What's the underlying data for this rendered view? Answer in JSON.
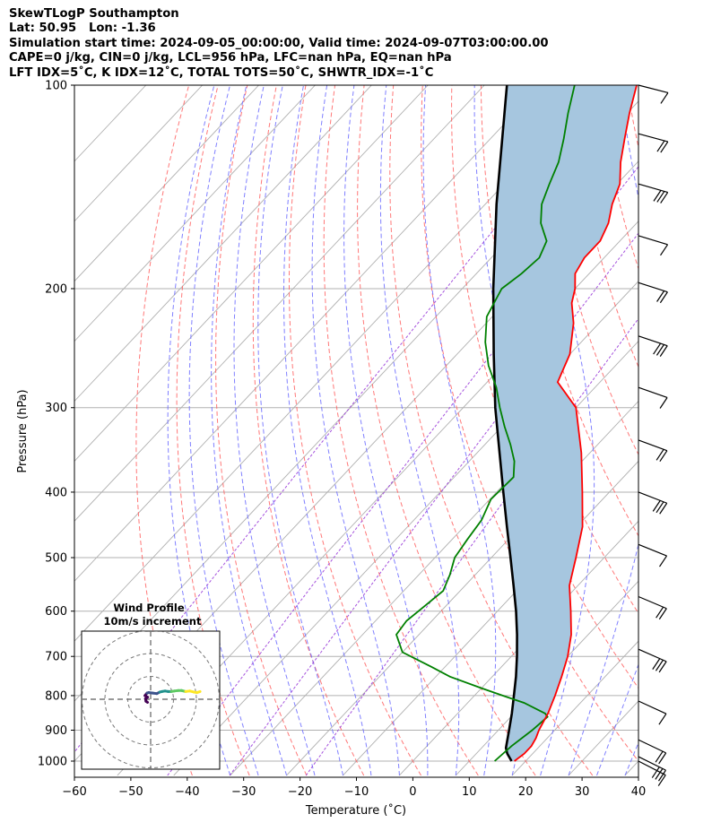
{
  "header": {
    "line1": "SkewTLogP Southampton",
    "line2": "Lat: 50.95   Lon: -1.36",
    "line3": "Simulation start time: 2024-09-05_00:00:00, Valid time: 2024-09-07T03:00:00.00",
    "line4": "CAPE=0 j/kg, CIN=0 j/kg, LCL=956 hPa, LFC=nan hPa, EQ=nan hPa",
    "line5": "LFT IDX=5˚C, K IDX=12˚C, TOTAL TOTS=50˚C, SHWTR_IDX=-1˚C"
  },
  "chart_data": {
    "type": "line",
    "skew": "skew-T log-P",
    "xlabel": "Temperature (˚C)",
    "ylabel": "Pressure (hPa)",
    "xlim": [
      -60,
      40
    ],
    "ylim_hpa": [
      1050,
      100
    ],
    "y_scale": "log",
    "x_ticks": [
      "−60",
      "−50",
      "−40",
      "−30",
      "−20",
      "−10",
      "0",
      "10",
      "20",
      "30",
      "40"
    ],
    "y_ticks": [
      "100",
      "200",
      "300",
      "400",
      "500",
      "600",
      "700",
      "800",
      "900",
      "1000"
    ],
    "grid": true,
    "colors": {
      "temperature": "#ff0000",
      "dewpoint": "#008000",
      "parcel": "#000000",
      "shading": "#a6c6df",
      "dry_adiabats": "#ff6060",
      "moist_adiabats": "#6a6aff",
      "mixing_ratio": "#9b3fd9",
      "isotherms": "#b0b0b0"
    },
    "series": [
      {
        "key": "temperature",
        "points": [
          [
            1000,
            18.0
          ],
          [
            975,
            18.5
          ],
          [
            950,
            18.5
          ],
          [
            925,
            18.0
          ],
          [
            900,
            17.2
          ],
          [
            850,
            16.0
          ],
          [
            800,
            14.3
          ],
          [
            750,
            12.3
          ],
          [
            700,
            10.0
          ],
          [
            650,
            7.0
          ],
          [
            600,
            3.0
          ],
          [
            550,
            -1.5
          ],
          [
            500,
            -5.0
          ],
          [
            450,
            -9.0
          ],
          [
            400,
            -14.8
          ],
          [
            350,
            -21.5
          ],
          [
            300,
            -30.0
          ],
          [
            275,
            -37.5
          ],
          [
            250,
            -40.0
          ],
          [
            225,
            -44.5
          ],
          [
            210,
            -48.2
          ],
          [
            200,
            -50.0
          ],
          [
            190,
            -52.5
          ],
          [
            180,
            -53.5
          ],
          [
            170,
            -53.5
          ],
          [
            160,
            -55.0
          ],
          [
            150,
            -57.5
          ],
          [
            140,
            -59.5
          ],
          [
            130,
            -63.0
          ],
          [
            120,
            -66.2
          ],
          [
            110,
            -69.6
          ],
          [
            100,
            -73.0
          ]
        ]
      },
      {
        "key": "dewpoint",
        "points": [
          [
            1000,
            14.5
          ],
          [
            950,
            15.0
          ],
          [
            900,
            16.0
          ],
          [
            860,
            16.5
          ],
          [
            850,
            15.5
          ],
          [
            820,
            10.0
          ],
          [
            800,
            5.0
          ],
          [
            780,
            0.0
          ],
          [
            750,
            -7.5
          ],
          [
            725,
            -12.5
          ],
          [
            690,
            -20.0
          ],
          [
            650,
            -24.0
          ],
          [
            620,
            -24.5
          ],
          [
            600,
            -24.0
          ],
          [
            560,
            -23.0
          ],
          [
            530,
            -24.5
          ],
          [
            500,
            -26.5
          ],
          [
            470,
            -27.3
          ],
          [
            440,
            -28.0
          ],
          [
            410,
            -29.8
          ],
          [
            380,
            -29.5
          ],
          [
            360,
            -32.0
          ],
          [
            340,
            -35.5
          ],
          [
            320,
            -39.5
          ],
          [
            300,
            -43.5
          ],
          [
            280,
            -47.5
          ],
          [
            260,
            -52.5
          ],
          [
            240,
            -57.0
          ],
          [
            220,
            -61.0
          ],
          [
            200,
            -63.0
          ],
          [
            190,
            -62.0
          ],
          [
            180,
            -61.5
          ],
          [
            170,
            -63.0
          ],
          [
            160,
            -67.0
          ],
          [
            150,
            -70.0
          ],
          [
            140,
            -72.0
          ],
          [
            130,
            -74.0
          ],
          [
            120,
            -77.0
          ],
          [
            110,
            -80.5
          ],
          [
            100,
            -84.0
          ]
        ]
      },
      {
        "key": "parcel",
        "points": [
          [
            1000,
            17.5
          ],
          [
            975,
            15.5
          ],
          [
            956,
            14.3
          ],
          [
            900,
            11.9
          ],
          [
            850,
            9.6
          ],
          [
            800,
            7.0
          ],
          [
            750,
            4.2
          ],
          [
            700,
            1.0
          ],
          [
            650,
            -2.6
          ],
          [
            600,
            -6.7
          ],
          [
            550,
            -11.4
          ],
          [
            500,
            -16.6
          ],
          [
            450,
            -22.4
          ],
          [
            400,
            -28.8
          ],
          [
            350,
            -36.0
          ],
          [
            300,
            -44.3
          ],
          [
            250,
            -53.5
          ],
          [
            200,
            -64.5
          ],
          [
            150,
            -78.0
          ],
          [
            100,
            -96.0
          ]
        ]
      }
    ],
    "wind_barbs_hpa": [
      100,
      118,
      140,
      167,
      196,
      235,
      280,
      335,
      400,
      478,
      571,
      683,
      815,
      930,
      985,
      1000
    ],
    "hodograph": {
      "title_line1": "Wind Profile",
      "title_line2": "10m/s increment",
      "rings_m_s": [
        10,
        20,
        30
      ],
      "points_uv": [
        [
          -3.0,
          -3.0
        ],
        [
          -4.5,
          -2.0
        ],
        [
          -5.0,
          0.5
        ],
        [
          -3.0,
          2.0
        ],
        [
          -5.5,
          3.5
        ],
        [
          -3.5,
          6.0
        ],
        [
          -2.0,
          6.5
        ],
        [
          2.0,
          6.0
        ],
        [
          6.0,
          5.5
        ],
        [
          9.0,
          7.0
        ],
        [
          11.0,
          7.5
        ],
        [
          14.0,
          8.0
        ],
        [
          17.0,
          7.5
        ],
        [
          20.0,
          7.5
        ],
        [
          23.0,
          8.0
        ],
        [
          27.0,
          8.5
        ],
        [
          30.0,
          8.5
        ],
        [
          34.0,
          7.5
        ],
        [
          38.0,
          8.0
        ],
        [
          42.0,
          7.0
        ],
        [
          45.0,
          6.5
        ],
        [
          48.0,
          7.5
        ]
      ]
    }
  }
}
